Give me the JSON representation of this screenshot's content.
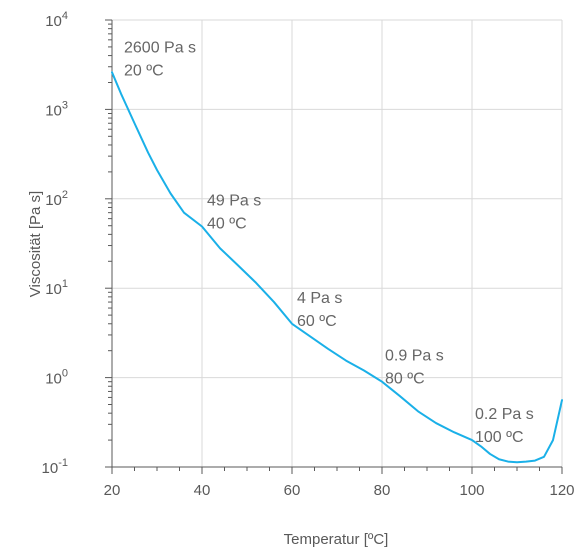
{
  "chart_data": {
    "type": "line",
    "title": "",
    "xlabel": "Temperatur [ºC]",
    "ylabel": "Viscosität [Pa s]",
    "xlim": [
      20,
      120
    ],
    "ylim": [
      0.1,
      10000
    ],
    "yscale": "log",
    "grid": true,
    "x_ticks": [
      20,
      40,
      60,
      80,
      100,
      120
    ],
    "x_tick_labels": [
      "20",
      "40",
      "60",
      "80",
      "100",
      "120"
    ],
    "y_ticks": [
      0.1,
      1,
      10,
      100,
      1000,
      10000
    ],
    "y_tick_labels": [
      {
        "base": "10",
        "exp": "-1"
      },
      {
        "base": "10",
        "exp": "0"
      },
      {
        "base": "10",
        "exp": "1"
      },
      {
        "base": "10",
        "exp": "2"
      },
      {
        "base": "10",
        "exp": "3"
      },
      {
        "base": "10",
        "exp": "4"
      }
    ],
    "series": [
      {
        "color": "#1ab0e8",
        "x": [
          20,
          22,
          25,
          28,
          30,
          33,
          36,
          40,
          44,
          48,
          52,
          56,
          60,
          64,
          68,
          72,
          76,
          80,
          84,
          88,
          92,
          96,
          100,
          102,
          104,
          106,
          108,
          110,
          112,
          114,
          116,
          118,
          120
        ],
        "y": [
          2600,
          1500,
          700,
          330,
          210,
          115,
          70,
          49,
          28,
          18,
          11.5,
          7,
          4,
          2.9,
          2.1,
          1.55,
          1.2,
          0.9,
          0.62,
          0.42,
          0.31,
          0.245,
          0.2,
          0.17,
          0.14,
          0.122,
          0.115,
          0.113,
          0.115,
          0.118,
          0.13,
          0.2,
          0.56
        ]
      }
    ],
    "annotations": [
      {
        "lines": [
          "2600 Pa s",
          "20 ºC"
        ],
        "x": 20,
        "y": 2600
      },
      {
        "lines": [
          "49 Pa s",
          "40 ºC"
        ],
        "x": 40,
        "y": 49
      },
      {
        "lines": [
          "4 Pa s",
          "60 ºC"
        ],
        "x": 60,
        "y": 4
      },
      {
        "lines": [
          "0.9 Pa s",
          "80 ºC"
        ],
        "x": 80,
        "y": 0.9
      },
      {
        "lines": [
          "0.2 Pa s",
          "100 ºC"
        ],
        "x": 100,
        "y": 0.2
      }
    ]
  }
}
